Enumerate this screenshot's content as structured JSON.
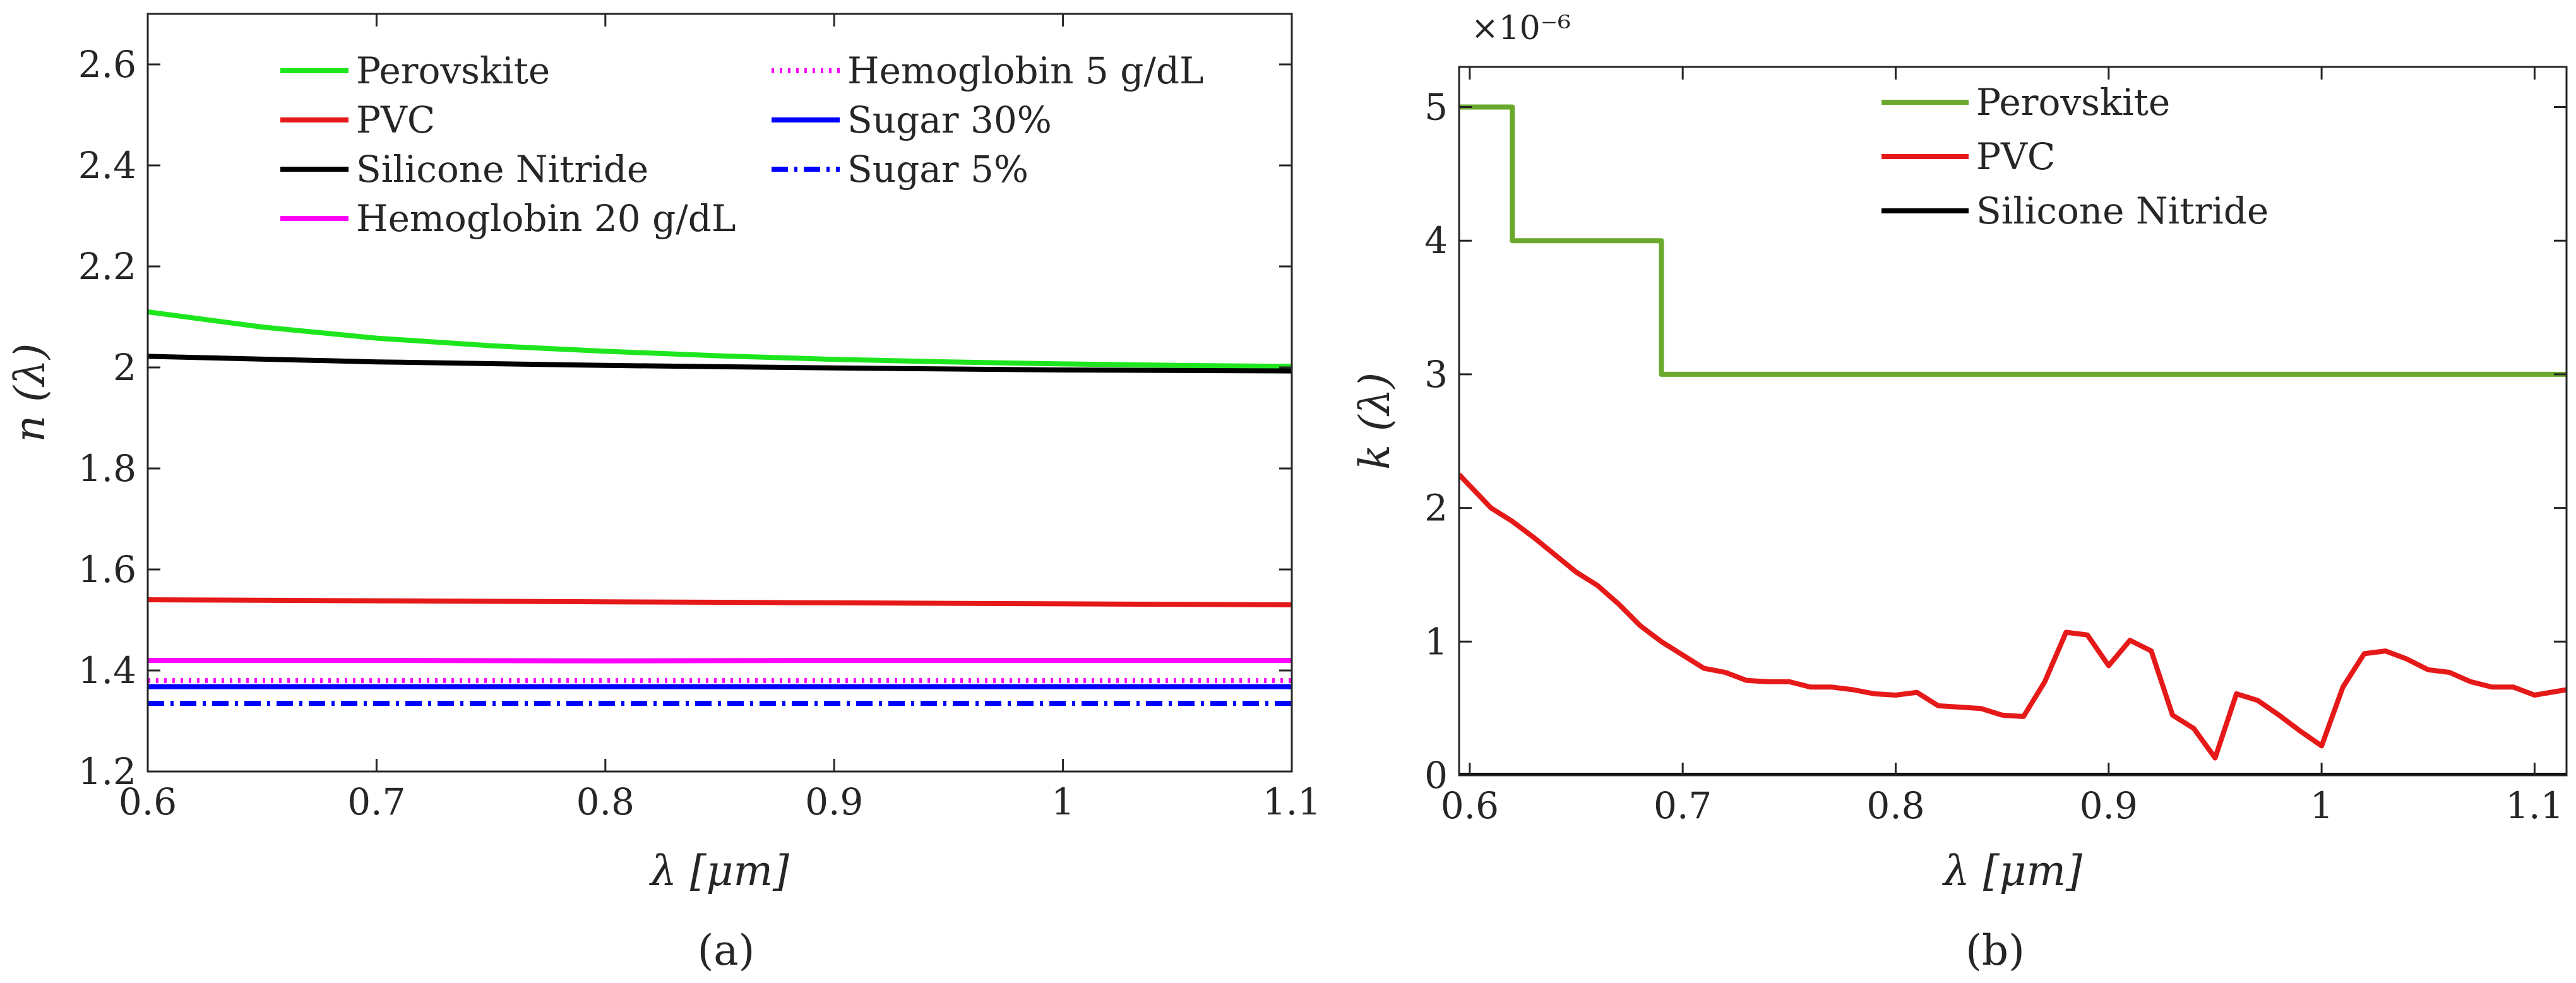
{
  "chart_data": [
    {
      "type": "line",
      "panel_label": "(a)",
      "xlabel": "λ [μm]",
      "ylabel": "n (λ)",
      "xlim": [
        0.6,
        1.1
      ],
      "ylim": [
        1.2,
        2.7
      ],
      "xticks": [
        0.6,
        0.7,
        0.8,
        0.9,
        1.0,
        1.1
      ],
      "xtick_labels": [
        "0.6",
        "0.7",
        "0.8",
        "0.9",
        "1",
        "1.1"
      ],
      "yticks": [
        1.2,
        1.4,
        1.6,
        1.8,
        2.0,
        2.2,
        2.4,
        2.6
      ],
      "ytick_labels": [
        "1.2",
        "1.4",
        "1.6",
        "1.8",
        "2",
        "2.2",
        "2.4",
        "2.6"
      ],
      "grid": false,
      "legend_position": "top",
      "series": [
        {
          "name": "Perovskite",
          "color": "#1ee61e",
          "style": "solid",
          "x": [
            0.6,
            0.65,
            0.7,
            0.75,
            0.8,
            0.85,
            0.9,
            0.95,
            1.0,
            1.05,
            1.1
          ],
          "y": [
            2.11,
            2.08,
            2.058,
            2.043,
            2.032,
            2.023,
            2.016,
            2.011,
            2.007,
            2.004,
            2.002
          ]
        },
        {
          "name": "PVC",
          "color": "#e61919",
          "style": "solid",
          "x": [
            0.6,
            0.7,
            0.8,
            0.9,
            1.0,
            1.1
          ],
          "y": [
            1.54,
            1.538,
            1.536,
            1.534,
            1.532,
            1.53
          ]
        },
        {
          "name": "Silicone Nitride",
          "color": "#000000",
          "style": "solid",
          "x": [
            0.6,
            0.7,
            0.8,
            0.9,
            1.0,
            1.1
          ],
          "y": [
            2.022,
            2.011,
            2.004,
            1.999,
            1.995,
            1.993
          ]
        },
        {
          "name": "Hemoglobin 20 g/dL",
          "color": "#ff00ff",
          "style": "solid",
          "x": [
            0.6,
            0.7,
            0.8,
            0.9,
            1.0,
            1.1
          ],
          "y": [
            1.42,
            1.42,
            1.419,
            1.42,
            1.42,
            1.42
          ]
        },
        {
          "name": "Hemoglobin 5 g/dL",
          "color": "#ff00ff",
          "style": "dotted",
          "x": [
            0.6,
            0.7,
            0.8,
            0.9,
            1.0,
            1.1
          ],
          "y": [
            1.38,
            1.38,
            1.38,
            1.38,
            1.38,
            1.38
          ]
        },
        {
          "name": "Sugar 30%",
          "color": "#0000ff",
          "style": "solid",
          "x": [
            0.6,
            0.7,
            0.8,
            0.9,
            1.0,
            1.1
          ],
          "y": [
            1.368,
            1.368,
            1.368,
            1.368,
            1.368,
            1.368
          ]
        },
        {
          "name": "Sugar 5%",
          "color": "#0000ff",
          "style": "dashdot",
          "x": [
            0.6,
            0.7,
            0.8,
            0.9,
            1.0,
            1.1
          ],
          "y": [
            1.335,
            1.335,
            1.335,
            1.335,
            1.335,
            1.335
          ]
        }
      ]
    },
    {
      "type": "line",
      "panel_label": "(b)",
      "xlabel": "λ [μm]",
      "ylabel": "k (λ)",
      "y_multiplier": "×10⁻⁶",
      "xlim": [
        0.595,
        1.115
      ],
      "ylim": [
        0,
        5.3
      ],
      "xticks": [
        0.6,
        0.7,
        0.8,
        0.9,
        1.0,
        1.1
      ],
      "xtick_labels": [
        "0.6",
        "0.7",
        "0.8",
        "0.9",
        "1",
        "1.1"
      ],
      "yticks": [
        0,
        1,
        2,
        3,
        4,
        5
      ],
      "ytick_labels": [
        "0",
        "1",
        "2",
        "3",
        "4",
        "5"
      ],
      "grid": false,
      "legend_position": "top-center",
      "series": [
        {
          "name": "Perovskite",
          "color": "#6aa92c",
          "style": "solid",
          "x": [
            0.595,
            0.62,
            0.62,
            0.69,
            0.69,
            1.115
          ],
          "y": [
            5.0,
            5.0,
            4.0,
            4.0,
            3.0,
            3.0
          ]
        },
        {
          "name": "PVC",
          "color": "#e61919",
          "style": "solid",
          "x": [
            0.595,
            0.61,
            0.62,
            0.63,
            0.64,
            0.65,
            0.66,
            0.67,
            0.68,
            0.69,
            0.7,
            0.71,
            0.72,
            0.73,
            0.74,
            0.75,
            0.76,
            0.77,
            0.78,
            0.79,
            0.8,
            0.81,
            0.82,
            0.83,
            0.84,
            0.85,
            0.86,
            0.87,
            0.88,
            0.89,
            0.9,
            0.91,
            0.92,
            0.93,
            0.94,
            0.95,
            0.96,
            0.97,
            0.98,
            0.99,
            1.0,
            1.01,
            1.02,
            1.03,
            1.04,
            1.05,
            1.06,
            1.07,
            1.08,
            1.09,
            1.1,
            1.115
          ],
          "y": [
            2.25,
            2.0,
            1.9,
            1.78,
            1.65,
            1.52,
            1.42,
            1.28,
            1.12,
            1.0,
            0.9,
            0.8,
            0.77,
            0.71,
            0.7,
            0.7,
            0.66,
            0.66,
            0.64,
            0.61,
            0.6,
            0.62,
            0.52,
            0.51,
            0.5,
            0.45,
            0.44,
            0.7,
            1.07,
            1.05,
            0.82,
            1.01,
            0.93,
            0.45,
            0.35,
            0.13,
            0.61,
            0.56,
            0.45,
            0.33,
            0.22,
            0.66,
            0.91,
            0.93,
            0.87,
            0.79,
            0.77,
            0.7,
            0.66,
            0.66,
            0.6,
            0.64
          ]
        },
        {
          "name": "Silicone Nitride",
          "color": "#000000",
          "style": "solid",
          "x": [
            0.595,
            1.115
          ],
          "y": [
            0.0,
            0.0
          ]
        }
      ]
    }
  ]
}
